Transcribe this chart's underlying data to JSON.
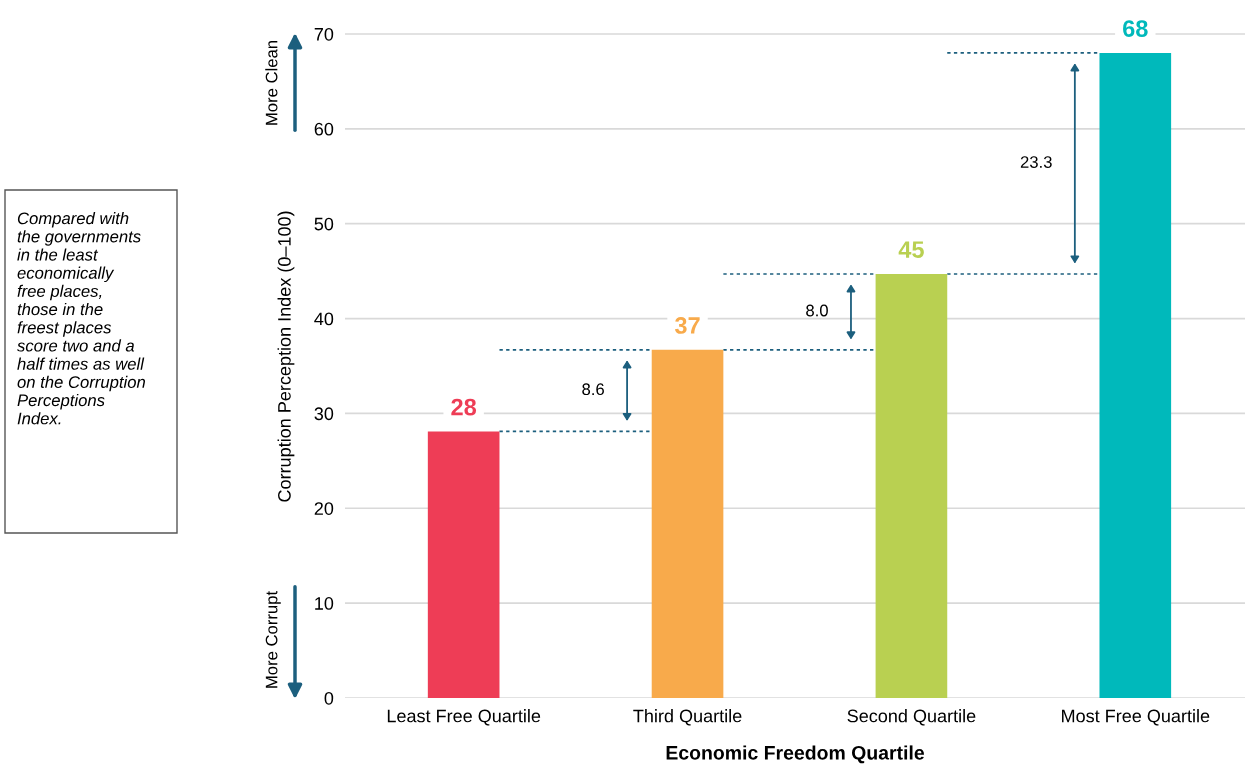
{
  "chart_data": {
    "type": "bar",
    "xlabel": "Economic Freedom Quartile",
    "ylabel": "Corruption Perception Index (0–100)",
    "categories": [
      "Least Free Quartile",
      "Third Quartile",
      "Second Quartile",
      "Most Free Quartile"
    ],
    "values": [
      28.1,
      36.7,
      44.7,
      68.0
    ],
    "colors": [
      "#ee3d56",
      "#f8aa4b",
      "#b9d051",
      "#00b9bb"
    ],
    "value_labels": [
      "28",
      "37",
      "45",
      "68"
    ],
    "ylim": [
      0,
      72
    ],
    "yticks": [
      0,
      10,
      20,
      30,
      40,
      50,
      60,
      70
    ],
    "grid": "y",
    "annotations": [
      "8.6",
      "8.0",
      "23.3",
      "More Clean",
      "More Corrupt",
      "Compared with\nthe governments\nin the least\neconomically\nfree places,\nthose in the\nfreest places\nscore two and a\nhalf times as well\non the Corruption\nPerceptions\nIndex."
    ]
  }
}
